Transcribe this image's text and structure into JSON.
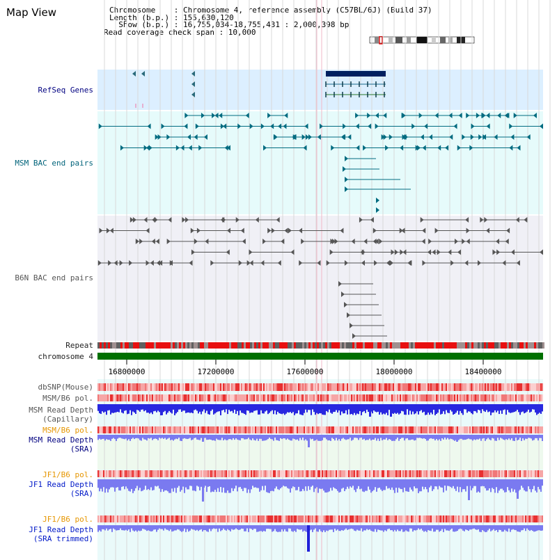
{
  "title": "Map View",
  "header": {
    "chromosome_line": "Chromosome    : Chromosome 4, reference assembly (C57BL/6J) (Build 37)",
    "length_line": "Length (b.p.) : 155,630,120",
    "show_line": "  Show (b.p.) : 16,755,034-18,755,431 : 2,000,398 bp",
    "coverage_line": "Read coverage check span : 10,000"
  },
  "tracks": {
    "refseq": "RefSeq Genes",
    "msm_bac": "MSM BAC end pairs",
    "b6n_bac": "B6N BAC end pairs",
    "repeat": "Repeat",
    "chromosome": "chromosome 4",
    "dbsnp": "dbSNP(Mouse)",
    "msm_b6_pol_1": "MSM/B6 pol.",
    "msm_depth_cap_1": "MSM Read Depth",
    "msm_depth_cap_2": "(Capillary)",
    "msm_b6_pol_2": "MSM/B6 pol.",
    "msm_depth_sra_1": "MSM Read Depth",
    "msm_depth_sra_2": "(SRA)",
    "jf1_b6_pol_1": "JF1/B6 pol.",
    "jf1_depth_sra_1": "JF1 Read Depth",
    "jf1_depth_sra_2": "(SRA)",
    "jf1_b6_pol_2": "JF1/B6 pol.",
    "jf1_depth_trim_1": "JF1 Read Depth",
    "jf1_depth_trim_2": "(SRA trimmed)"
  },
  "axis": {
    "ticks": [
      "16800000",
      "17200000",
      "17600000",
      "18000000",
      "18400000"
    ]
  },
  "colors": {
    "refseq_bg": "#dcefff",
    "msm_bac_bg": "#e6fbfb",
    "b6n_bac_bg": "#f0f0f6",
    "chromosome_bar": "#007000",
    "gene_dark": "#002060",
    "msm_bac": "#006b80",
    "b6n_bac": "#555555",
    "depth_dark": "#2828e0",
    "depth_light": "#7a7af0"
  }
}
